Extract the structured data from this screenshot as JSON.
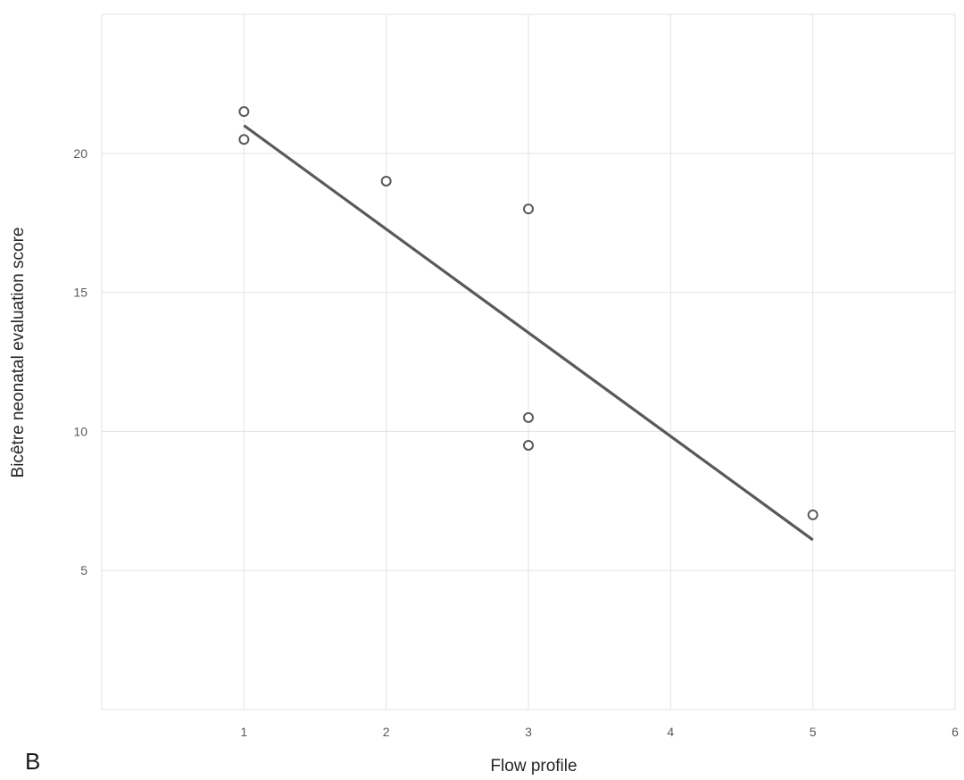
{
  "panel_label": "B",
  "chart_data": {
    "type": "scatter",
    "xlabel": "Flow profile",
    "ylabel": "Bicêtre neonatal evaluation score",
    "xlim": [
      0,
      6
    ],
    "ylim": [
      0,
      25
    ],
    "x_ticks": [
      1,
      2,
      3,
      4,
      5,
      6
    ],
    "y_ticks": [
      5,
      10,
      15,
      20
    ],
    "grid": true,
    "legend": "none",
    "points": [
      {
        "x": 1,
        "y": 21.5
      },
      {
        "x": 1,
        "y": 20.5
      },
      {
        "x": 2,
        "y": 19
      },
      {
        "x": 3,
        "y": 18
      },
      {
        "x": 3,
        "y": 10.5
      },
      {
        "x": 3,
        "y": 9.5
      },
      {
        "x": 5,
        "y": 7
      }
    ],
    "trendline": {
      "type": "linear",
      "from": {
        "x": 1,
        "y": 21
      },
      "to": {
        "x": 5,
        "y": 6.1
      }
    },
    "colors": {
      "marker": "#595959",
      "trendline": "#595959",
      "grid": "#e3e3e3"
    }
  }
}
